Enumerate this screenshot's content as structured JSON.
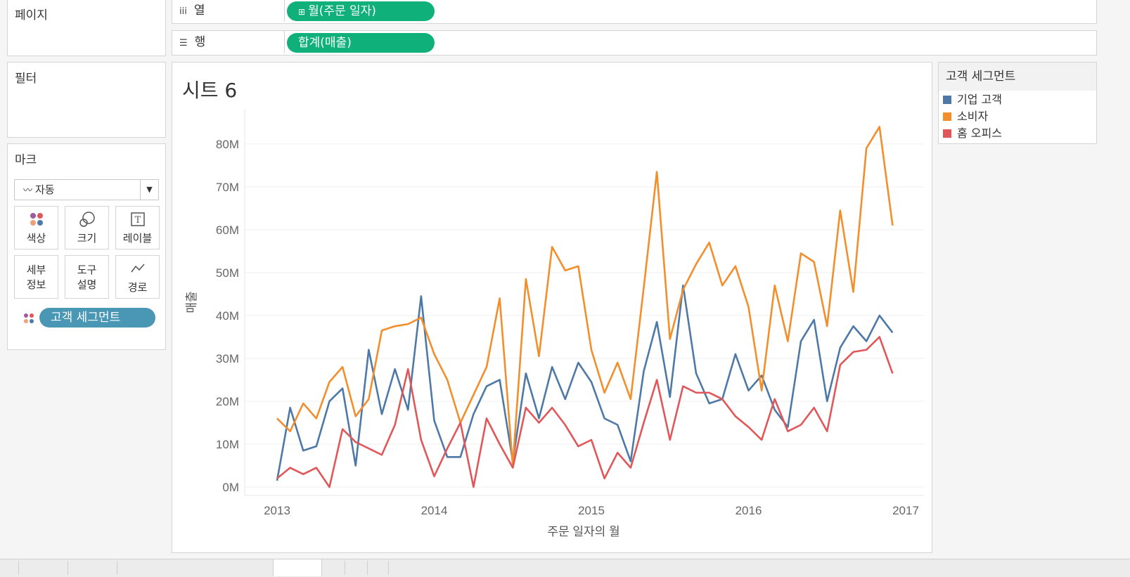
{
  "pages_panel": {
    "title": "페이지"
  },
  "filters_panel": {
    "title": "필터"
  },
  "marks_panel": {
    "title": "마크",
    "mark_type": "자동",
    "buttons": {
      "color": "색상",
      "size": "크기",
      "label": "레이블",
      "detail": "세부\n정보",
      "detail_line1": "세부",
      "detail_line2": "정보",
      "tooltip_line1": "도구",
      "tooltip_line2": "설명",
      "path": "경로"
    },
    "color_pill": "고객 세그먼트"
  },
  "columns_shelf": {
    "label": "열",
    "pill": "월(주문 일자)",
    "pill_prefix": "⊞"
  },
  "rows_shelf": {
    "label": "행",
    "pill": "합계(매출)"
  },
  "sheet": {
    "title": "시트 6"
  },
  "legend": {
    "title": "고객 세그먼트",
    "items": [
      {
        "label": "기업 고객",
        "color": "#4e79a7"
      },
      {
        "label": "소비자",
        "color": "#f28e2b"
      },
      {
        "label": "홈 오피스",
        "color": "#e15759"
      }
    ]
  },
  "chart_data": {
    "type": "line",
    "title": "시트 6",
    "xlabel": "주문 일자의 월",
    "ylabel": "매출",
    "ylim": [
      0,
      88
    ],
    "y_ticks": [
      0,
      10,
      20,
      30,
      40,
      50,
      60,
      70,
      80
    ],
    "y_tick_labels": [
      "0M",
      "10M",
      "20M",
      "30M",
      "40M",
      "50M",
      "60M",
      "70M",
      "80M"
    ],
    "x_tick_labels": [
      "2013",
      "2014",
      "2015",
      "2016",
      "2017"
    ],
    "x_ticks": [
      0,
      12,
      24,
      36,
      48
    ],
    "unit": "M",
    "series": [
      {
        "name": "기업 고객",
        "color": "#4e79a7",
        "values": [
          1.5,
          18.5,
          8.5,
          9.5,
          20,
          23,
          5,
          32,
          17,
          27.5,
          18,
          44.5,
          15.5,
          7,
          7,
          17,
          23.5,
          25,
          6,
          26.5,
          16,
          28,
          20.5,
          29,
          24.5,
          16,
          14.5,
          6,
          27,
          38.5,
          21,
          47,
          26.5,
          19.5,
          20.5,
          31,
          22.5,
          26,
          18,
          14,
          34,
          39,
          20,
          32.5,
          37.5,
          34,
          40,
          36
        ]
      },
      {
        "name": "소비자",
        "color": "#f28e2b",
        "values": [
          16,
          13,
          19.5,
          16,
          24.5,
          28,
          16.5,
          20.5,
          36.5,
          37.5,
          38,
          39.5,
          31,
          25,
          15,
          21.5,
          28,
          44,
          5,
          48.5,
          30.5,
          56,
          50.5,
          51.5,
          32,
          22,
          29,
          20.5,
          46.5,
          73.5,
          34.5,
          46,
          52,
          57,
          47,
          51.5,
          42,
          22.5,
          47,
          34,
          54.5,
          52.5,
          37.5,
          64.5,
          45.5,
          79,
          84,
          61
        ]
      },
      {
        "name": "홈 오피스",
        "color": "#e15759",
        "values": [
          2,
          4.5,
          3,
          4.5,
          0,
          13.5,
          10.5,
          9,
          7.5,
          14.5,
          27.5,
          11,
          2.5,
          9,
          15,
          0,
          16,
          10,
          4.5,
          18.5,
          15,
          18.5,
          14.5,
          9.5,
          11,
          2,
          8,
          4.5,
          15,
          25,
          11,
          23.5,
          22,
          22,
          20.5,
          16.5,
          14,
          11,
          20.5,
          13,
          14.5,
          18.5,
          13,
          28.5,
          31.5,
          32,
          35,
          26.5
        ]
      }
    ]
  }
}
